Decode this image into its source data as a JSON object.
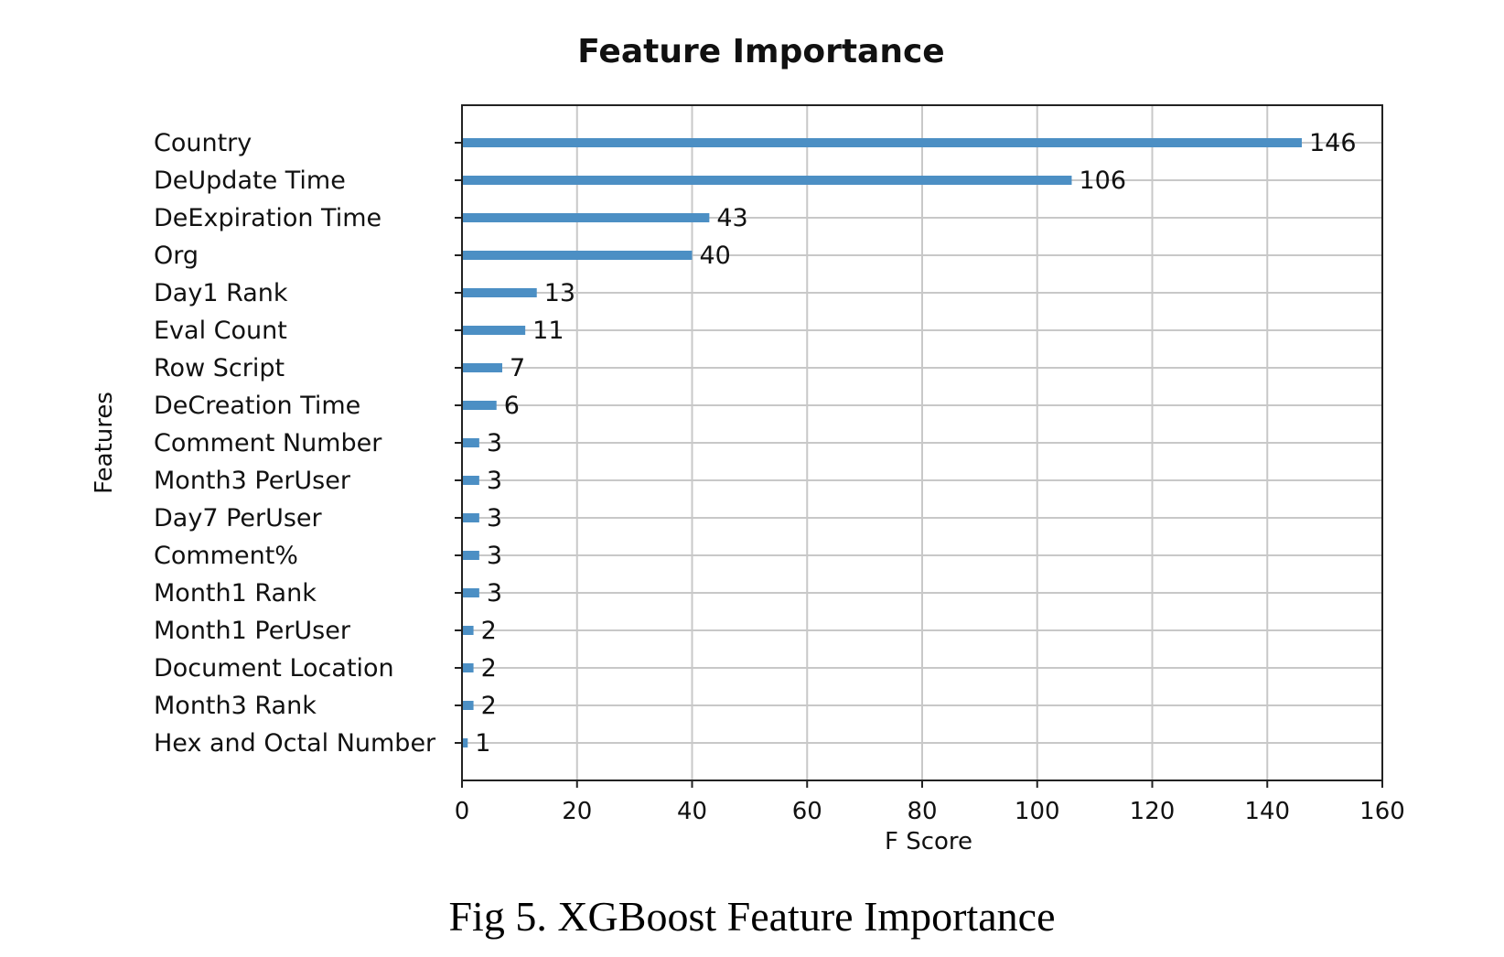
{
  "chart_data": {
    "type": "bar",
    "orientation": "horizontal",
    "title": "Feature Importance",
    "xlabel": "F Score",
    "ylabel": "Features",
    "xlim": [
      0,
      160
    ],
    "xticks": [
      0,
      20,
      40,
      60,
      80,
      100,
      120,
      140,
      160
    ],
    "grid": true,
    "bar_color": "#4c8fc4",
    "categories": [
      "Country",
      "DeUpdate Time",
      "DeExpiration Time",
      "Org",
      "Day1 Rank",
      "Eval Count",
      "Row Script",
      "DeCreation Time",
      "Comment Number",
      "Month3 PerUser",
      "Day7 PerUser",
      "Comment%",
      "Month1 Rank",
      "Month1 PerUser",
      "Document Location",
      "Month3 Rank",
      "Hex and Octal Number"
    ],
    "values": [
      146,
      106,
      43,
      40,
      13,
      11,
      7,
      6,
      3,
      3,
      3,
      3,
      3,
      2,
      2,
      2,
      1
    ]
  },
  "caption": "Fig 5. XGBoost Feature Importance"
}
